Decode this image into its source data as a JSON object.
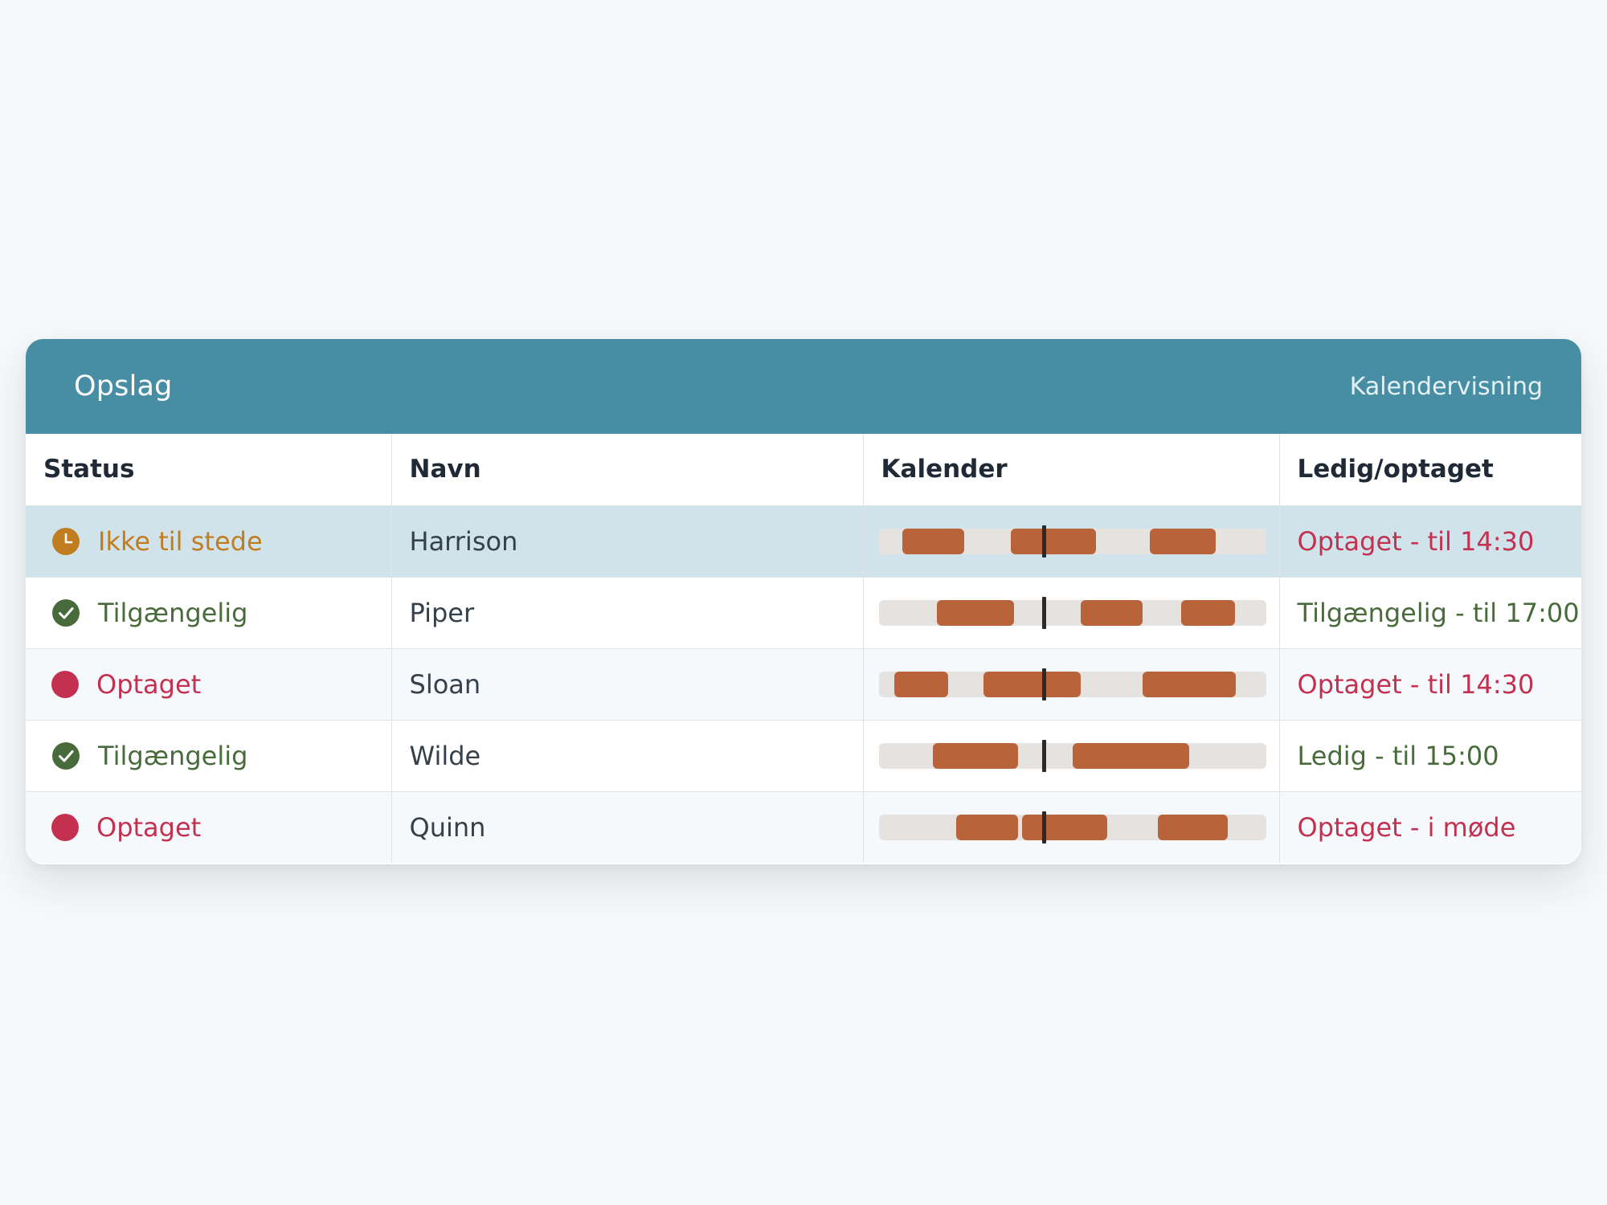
{
  "header": {
    "title": "Opslag",
    "view_link": "Kalendervisning"
  },
  "columns": {
    "status": "Status",
    "name": "Navn",
    "calendar": "Kalender",
    "availability": "Ledig/optaget"
  },
  "colors": {
    "header_bg": "#478ea5",
    "away": "#c07d1f",
    "available": "#486b3b",
    "busy": "#c33050",
    "busy_block": "#b9633a",
    "selected_row": "#d1e3ea"
  },
  "rows": [
    {
      "status": "Ikke til stede",
      "status_type": "away",
      "status_icon": "clock-icon",
      "name": "Harrison",
      "availability": "Optaget - til 14:30",
      "availability_type": "busy",
      "selected": true,
      "calendar": {
        "busy_fractions": [
          [
            0.06,
            0.22
          ],
          [
            0.34,
            0.56
          ],
          [
            0.7,
            0.87
          ]
        ],
        "now_fraction": 0.425
      }
    },
    {
      "status": "Tilgængelig",
      "status_type": "available",
      "status_icon": "check-circle-icon",
      "name": "Piper",
      "availability": "Tilgængelig - til 17:00",
      "availability_type": "available",
      "selected": false,
      "calendar": {
        "busy_fractions": [
          [
            0.15,
            0.35
          ],
          [
            0.52,
            0.68
          ],
          [
            0.78,
            0.92
          ]
        ],
        "now_fraction": 0.425
      }
    },
    {
      "status": "Optaget",
      "status_type": "busy",
      "status_icon": "busy-dot-icon",
      "name": "Sloan",
      "availability": "Optaget - til 14:30",
      "availability_type": "busy",
      "selected": false,
      "calendar": {
        "busy_fractions": [
          [
            0.04,
            0.18
          ],
          [
            0.27,
            0.52
          ],
          [
            0.68,
            0.92
          ]
        ],
        "now_fraction": 0.425
      }
    },
    {
      "status": "Tilgængelig",
      "status_type": "available",
      "status_icon": "check-circle-icon",
      "name": "Wilde",
      "availability": "Ledig - til 15:00",
      "availability_type": "available",
      "selected": false,
      "calendar": {
        "busy_fractions": [
          [
            0.14,
            0.36
          ],
          [
            0.5,
            0.8
          ]
        ],
        "now_fraction": 0.425
      }
    },
    {
      "status": "Optaget",
      "status_type": "busy",
      "status_icon": "busy-dot-icon",
      "name": "Quinn",
      "availability": "Optaget - i møde",
      "availability_type": "busy",
      "selected": false,
      "calendar": {
        "busy_fractions": [
          [
            0.2,
            0.36
          ],
          [
            0.37,
            0.59
          ],
          [
            0.72,
            0.9
          ]
        ],
        "now_fraction": 0.425
      }
    }
  ]
}
